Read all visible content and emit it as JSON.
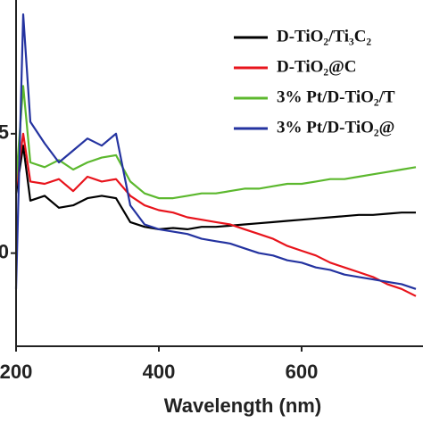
{
  "chart_data": {
    "type": "line",
    "x_label": "Wavelength (nm)",
    "x": [
      200,
      210,
      220,
      240,
      260,
      280,
      300,
      320,
      340,
      360,
      380,
      400,
      420,
      440,
      460,
      480,
      500,
      520,
      540,
      560,
      580,
      600,
      620,
      640,
      660,
      680,
      700,
      720,
      740,
      760
    ],
    "series": [
      {
        "name": "D-TiO₂/Ti₃C₂",
        "color": "#000000",
        "values": [
          2.5,
          4.5,
          2.2,
          2.4,
          1.9,
          2.0,
          2.3,
          2.4,
          2.3,
          1.3,
          1.1,
          1.0,
          1.05,
          1.0,
          1.1,
          1.1,
          1.15,
          1.2,
          1.25,
          1.3,
          1.35,
          1.4,
          1.45,
          1.5,
          1.55,
          1.6,
          1.6,
          1.65,
          1.7,
          1.7
        ]
      },
      {
        "name": "D-TiO₂@C",
        "color": "#e8141c",
        "values": [
          2.8,
          5.0,
          3.0,
          2.9,
          3.1,
          2.6,
          3.2,
          3.0,
          3.1,
          2.4,
          2.0,
          1.8,
          1.7,
          1.5,
          1.4,
          1.3,
          1.2,
          1.0,
          0.8,
          0.6,
          0.3,
          0.1,
          -0.1,
          -0.4,
          -0.6,
          -0.8,
          -1.0,
          -1.3,
          -1.5,
          -1.8
        ]
      },
      {
        "name": "3% Pt/D-TiO₂/T",
        "color": "#5cb82e",
        "values": [
          3.0,
          7.0,
          3.8,
          3.6,
          3.9,
          3.5,
          3.8,
          4.0,
          4.1,
          3.0,
          2.5,
          2.3,
          2.3,
          2.4,
          2.5,
          2.5,
          2.6,
          2.7,
          2.7,
          2.8,
          2.9,
          2.9,
          3.0,
          3.1,
          3.1,
          3.2,
          3.3,
          3.4,
          3.5,
          3.6
        ]
      },
      {
        "name": "3% Pt/D-TiO₂@",
        "color": "#2433a0",
        "values": [
          -1.5,
          10.0,
          5.5,
          4.6,
          3.8,
          4.3,
          4.8,
          4.5,
          5.0,
          2.0,
          1.2,
          1.0,
          0.9,
          0.8,
          0.6,
          0.5,
          0.4,
          0.2,
          0.0,
          -0.1,
          -0.3,
          -0.4,
          -0.6,
          -0.7,
          -0.9,
          -1.0,
          -1.1,
          -1.2,
          -1.3,
          -1.5
        ]
      }
    ],
    "xlim": [
      200,
      770
    ],
    "xticks": [
      200,
      400,
      600
    ],
    "ylim": [
      -3.9,
      10.6
    ],
    "yticks": [
      0,
      5
    ],
    "legend": "upper right"
  }
}
